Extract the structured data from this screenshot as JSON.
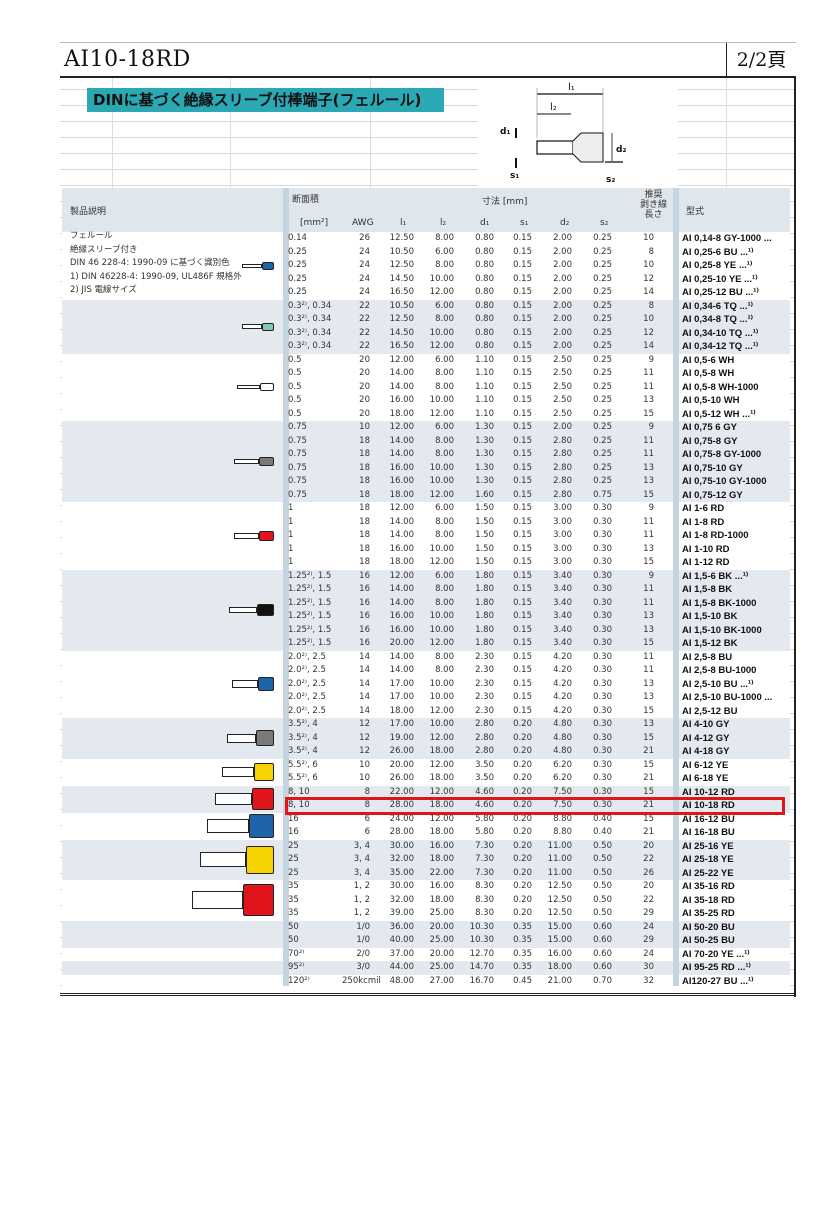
{
  "header": {
    "title": "AI10-18RD",
    "page": "2/2頁"
  },
  "banner": {
    "text": "DINに基づく絶縁スリーブ付棒端子(フェルール)",
    "color": "#2aa9b5"
  },
  "diagram": {
    "labels": {
      "l1": "l₁",
      "l2": "l₂",
      "d1": "d₁",
      "d2": "d₂",
      "s1": "s₁",
      "s2": "s₂"
    }
  },
  "table": {
    "headers": {
      "description": "製品説明",
      "cross_section": "断面積",
      "dimensions": "寸法 [mm]",
      "strip_length": [
        "推奨",
        "剥き線",
        "長さ"
      ],
      "model": "型式",
      "mm2": "[mm²]",
      "awg": "AWG",
      "l1": "l₁",
      "l2": "l₂",
      "d1": "d₁",
      "s1": "s₁",
      "d2": "d₂",
      "s2": "s₂"
    },
    "description_lines": [
      "フェルール",
      "絶縁スリーブ付き",
      "DIN 46 228-4: 1990-09 に基づく識別色",
      "1)  DIN 46228-4: 1990-09, UL486F 規格外",
      "2)  JIS 電線サイズ"
    ],
    "highlight_color": "#e0141b",
    "groups": [
      {
        "color": "#1f63a8",
        "rows": [
          [
            "0.14",
            "26",
            "12.50",
            "8.00",
            "0.80",
            "0.15",
            "2.00",
            "0.25",
            "10",
            "AI 0,14-8 GY-1000 ..."
          ],
          [
            "0.25",
            "24",
            "10.50",
            "6.00",
            "0.80",
            "0.15",
            "2.00",
            "0.25",
            "8",
            "AI 0,25-6 BU ...¹⁾"
          ],
          [
            "0.25",
            "24",
            "12.50",
            "8.00",
            "0.80",
            "0.15",
            "2.00",
            "0.25",
            "10",
            "AI 0,25-8 YE ...¹⁾"
          ],
          [
            "0.25",
            "24",
            "14.50",
            "10.00",
            "0.80",
            "0.15",
            "2.00",
            "0.25",
            "12",
            "AI 0,25-10 YE ...¹⁾"
          ],
          [
            "0.25",
            "24",
            "16.50",
            "12.00",
            "0.80",
            "0.15",
            "2.00",
            "0.25",
            "14",
            "AI 0,25-12 BU ...¹⁾"
          ]
        ]
      },
      {
        "color": "#7fc8b4",
        "rows": [
          [
            "0.3²⁾, 0.34",
            "22",
            "10.50",
            "6.00",
            "0.80",
            "0.15",
            "2.00",
            "0.25",
            "8",
            "AI 0,34-6 TQ ...¹⁾"
          ],
          [
            "0.3²⁾, 0.34",
            "22",
            "12.50",
            "8.00",
            "0.80",
            "0.15",
            "2.00",
            "0.25",
            "10",
            "AI 0,34-8 TQ ...¹⁾"
          ],
          [
            "0.3²⁾, 0.34",
            "22",
            "14.50",
            "10.00",
            "0.80",
            "0.15",
            "2.00",
            "0.25",
            "12",
            "AI 0,34-10 TQ ...¹⁾"
          ],
          [
            "0.3²⁾, 0.34",
            "22",
            "16.50",
            "12.00",
            "0.80",
            "0.15",
            "2.00",
            "0.25",
            "14",
            "AI 0,34-12 TQ ...¹⁾"
          ]
        ]
      },
      {
        "color": "#ffffff",
        "rows": [
          [
            "0.5",
            "20",
            "12.00",
            "6.00",
            "1.10",
            "0.15",
            "2.50",
            "0.25",
            "9",
            "AI 0,5-6 WH"
          ],
          [
            "0.5",
            "20",
            "14.00",
            "8.00",
            "1.10",
            "0.15",
            "2.50",
            "0.25",
            "11",
            "AI 0,5-8 WH"
          ],
          [
            "0.5",
            "20",
            "14.00",
            "8.00",
            "1.10",
            "0.15",
            "2.50",
            "0.25",
            "11",
            "AI 0,5-8 WH-1000"
          ],
          [
            "0.5",
            "20",
            "16.00",
            "10.00",
            "1.10",
            "0.15",
            "2.50",
            "0.25",
            "13",
            "AI 0,5-10 WH"
          ],
          [
            "0.5",
            "20",
            "18.00",
            "12.00",
            "1.10",
            "0.15",
            "2.50",
            "0.25",
            "15",
            "AI 0,5-12 WH ...¹⁾"
          ]
        ]
      },
      {
        "color": "#7a7a7a",
        "rows": [
          [
            "0.75",
            "10",
            "12.00",
            "6.00",
            "1.30",
            "0.15",
            "2.00",
            "0.25",
            "9",
            "AI 0,75 6 GY"
          ],
          [
            "0.75",
            "18",
            "14.00",
            "8.00",
            "1.30",
            "0.15",
            "2.80",
            "0.25",
            "11",
            "AI 0,75-8 GY"
          ],
          [
            "0.75",
            "18",
            "14.00",
            "8.00",
            "1.30",
            "0.15",
            "2.80",
            "0.25",
            "11",
            "AI 0,75-8 GY-1000"
          ],
          [
            "0.75",
            "18",
            "16.00",
            "10.00",
            "1.30",
            "0.15",
            "2.80",
            "0.25",
            "13",
            "AI 0,75-10 GY"
          ],
          [
            "0.75",
            "18",
            "16.00",
            "10.00",
            "1.30",
            "0.15",
            "2.80",
            "0.25",
            "13",
            "AI 0,75-10 GY-1000"
          ],
          [
            "0.75",
            "18",
            "18.00",
            "12.00",
            "1.60",
            "0.15",
            "2.80",
            "0.75",
            "15",
            "AI 0,75-12 GY"
          ]
        ]
      },
      {
        "color": "#e0141b",
        "rows": [
          [
            "1",
            "18",
            "12.00",
            "6.00",
            "1.50",
            "0.15",
            "3.00",
            "0.30",
            "9",
            "AI 1-6 RD"
          ],
          [
            "1",
            "18",
            "14.00",
            "8.00",
            "1.50",
            "0.15",
            "3.00",
            "0.30",
            "11",
            "AI 1-8 RD"
          ],
          [
            "1",
            "18",
            "14.00",
            "8.00",
            "1.50",
            "0.15",
            "3.00",
            "0.30",
            "11",
            "AI 1-8 RD-1000"
          ],
          [
            "1",
            "18",
            "16.00",
            "10.00",
            "1.50",
            "0.15",
            "3.00",
            "0.30",
            "13",
            "AI 1-10 RD"
          ],
          [
            "1",
            "18",
            "18.00",
            "12.00",
            "1.50",
            "0.15",
            "3.00",
            "0.30",
            "15",
            "AI 1-12 RD"
          ]
        ]
      },
      {
        "color": "#111111",
        "rows": [
          [
            "1.25²⁾, 1.5",
            "16",
            "12.00",
            "6.00",
            "1.80",
            "0.15",
            "3.40",
            "0.30",
            "9",
            "AI 1,5-6 BK ...¹⁾"
          ],
          [
            "1.25²⁾, 1.5",
            "16",
            "14.00",
            "8.00",
            "1.80",
            "0.15",
            "3.40",
            "0.30",
            "11",
            "AI 1,5-8 BK"
          ],
          [
            "1.25²⁾, 1.5",
            "16",
            "14.00",
            "8.00",
            "1.80",
            "0.15",
            "3.40",
            "0.30",
            "11",
            "AI 1,5-8 BK-1000"
          ],
          [
            "1.25²⁾, 1.5",
            "16",
            "16.00",
            "10.00",
            "1.80",
            "0.15",
            "3.40",
            "0.30",
            "13",
            "AI 1,5-10 BK"
          ],
          [
            "1.25²⁾, 1.5",
            "16",
            "16.00",
            "10.00",
            "1.80",
            "0.15",
            "3.40",
            "0.30",
            "13",
            "AI 1,5-10 BK-1000"
          ],
          [
            "1.25²⁾, 1.5",
            "16",
            "20.00",
            "12.00",
            "1.80",
            "0.15",
            "3.40",
            "0.30",
            "15",
            "AI 1,5-12 BK"
          ]
        ]
      },
      {
        "color": "#1f63a8",
        "rows": [
          [
            "2.0²⁾, 2.5",
            "14",
            "14.00",
            "8.00",
            "2.30",
            "0.15",
            "4.20",
            "0.30",
            "11",
            "AI 2,5-8 BU"
          ],
          [
            "2.0²⁾, 2.5",
            "14",
            "14.00",
            "8.00",
            "2.30",
            "0.15",
            "4.20",
            "0.30",
            "11",
            "AI 2,5-8 BU-1000"
          ],
          [
            "2.0²⁾, 2.5",
            "14",
            "17.00",
            "10.00",
            "2.30",
            "0.15",
            "4.20",
            "0.30",
            "13",
            "AI 2,5-10 BU ...¹⁾"
          ],
          [
            "2.0²⁾, 2.5",
            "14",
            "17.00",
            "10.00",
            "2.30",
            "0.15",
            "4.20",
            "0.30",
            "13",
            "AI 2,5-10 BU-1000 ..."
          ],
          [
            "2.0²⁾, 2.5",
            "14",
            "18.00",
            "12.00",
            "2.30",
            "0.15",
            "4.20",
            "0.30",
            "15",
            "AI 2,5-12 BU"
          ]
        ]
      },
      {
        "color": "#7a7a7a",
        "rows": [
          [
            "3.5²⁾, 4",
            "12",
            "17.00",
            "10.00",
            "2.80",
            "0.20",
            "4.80",
            "0.30",
            "13",
            "AI 4-10 GY"
          ],
          [
            "3.5²⁾, 4",
            "12",
            "19.00",
            "12.00",
            "2.80",
            "0.20",
            "4.80",
            "0.30",
            "15",
            "AI 4-12 GY"
          ],
          [
            "3.5²⁾, 4",
            "12",
            "26.00",
            "18.00",
            "2.80",
            "0.20",
            "4.80",
            "0.30",
            "21",
            "AI 4-18 GY"
          ]
        ]
      },
      {
        "color": "#f5d200",
        "rows": [
          [
            "5.5²⁾, 6",
            "10",
            "20.00",
            "12.00",
            "3.50",
            "0.20",
            "6.20",
            "0.30",
            "15",
            "AI 6-12 YE"
          ],
          [
            "5.5²⁾, 6",
            "10",
            "26.00",
            "18.00",
            "3.50",
            "0.20",
            "6.20",
            "0.30",
            "21",
            "AI 6-18 YE"
          ]
        ]
      },
      {
        "color": "#e0141b",
        "rows": [
          [
            "8, 10",
            "8",
            "22.00",
            "12.00",
            "4.60",
            "0.20",
            "7.50",
            "0.30",
            "15",
            "AI 10-12 RD"
          ],
          [
            "8, 10",
            "8",
            "28.00",
            "18.00",
            "4.60",
            "0.20",
            "7.50",
            "0.30",
            "21",
            "AI 10-18 RD"
          ]
        ]
      },
      {
        "color": "#1f63a8",
        "rows": [
          [
            "16",
            "6",
            "24.00",
            "12.00",
            "5.80",
            "0.20",
            "8.80",
            "0.40",
            "15",
            "AI 16-12 BU"
          ],
          [
            "16",
            "6",
            "28.00",
            "18.00",
            "5.80",
            "0.20",
            "8.80",
            "0.40",
            "21",
            "AI 16-18 BU"
          ]
        ]
      },
      {
        "color": "#f5d200",
        "rows": [
          [
            "25",
            "3, 4",
            "30.00",
            "16.00",
            "7.30",
            "0.20",
            "11.00",
            "0.50",
            "20",
            "AI 25-16 YE"
          ],
          [
            "25",
            "3, 4",
            "32.00",
            "18.00",
            "7.30",
            "0.20",
            "11.00",
            "0.50",
            "22",
            "AI 25-18 YE"
          ],
          [
            "25",
            "3, 4",
            "35.00",
            "22.00",
            "7.30",
            "0.20",
            "11.00",
            "0.50",
            "26",
            "AI 25-22 YE"
          ]
        ]
      },
      {
        "color": "#e0141b",
        "rows": [
          [
            "35",
            "1, 2",
            "30.00",
            "16.00",
            "8.30",
            "0.20",
            "12.50",
            "0.50",
            "20",
            "AI 35-16 RD"
          ],
          [
            "35",
            "1, 2",
            "32.00",
            "18.00",
            "8.30",
            "0.20",
            "12.50",
            "0.50",
            "22",
            "AI 35-18 RD"
          ],
          [
            "35",
            "1, 2",
            "39.00",
            "25.00",
            "8.30",
            "0.20",
            "12.50",
            "0.50",
            "29",
            "AI 35-25 RD"
          ]
        ]
      },
      {
        "color": null,
        "rows": [
          [
            "50",
            "1/0",
            "36.00",
            "20.00",
            "10.30",
            "0.35",
            "15.00",
            "0.60",
            "24",
            "AI 50-20 BU"
          ],
          [
            "50",
            "1/0",
            "40.00",
            "25.00",
            "10.30",
            "0.35",
            "15.00",
            "0.60",
            "29",
            "AI 50-25 BU"
          ]
        ]
      },
      {
        "color": null,
        "rows": [
          [
            "70²⁾",
            "2/0",
            "37.00",
            "20.00",
            "12.70",
            "0.35",
            "16.00",
            "0.60",
            "24",
            "AI 70-20 YE ...¹⁾"
          ]
        ]
      },
      {
        "color": null,
        "rows": [
          [
            "95²⁾",
            "3/0",
            "44.00",
            "25.00",
            "14.70",
            "0.35",
            "18.00",
            "0.60",
            "30",
            "AI 95-25 RD ...¹⁾"
          ]
        ]
      },
      {
        "color": null,
        "rows": [
          [
            "120²⁾",
            "250kcmil",
            "48.00",
            "27.00",
            "16.70",
            "0.45",
            "21.00",
            "0.70",
            "32",
            "AI120-27 BU ...¹⁾"
          ]
        ]
      }
    ]
  }
}
